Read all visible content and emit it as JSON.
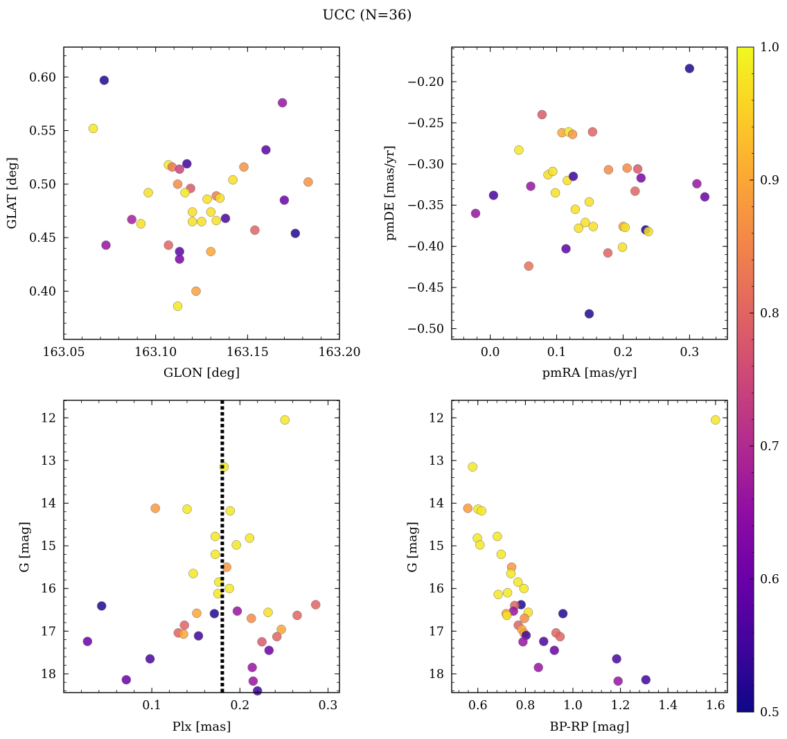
{
  "figure": {
    "title": "UCC (N=36)"
  },
  "colorbar": {
    "colormap": "plasma",
    "vmin": 0.5,
    "vmax": 1.0,
    "ticks": [
      0.5,
      0.6,
      0.7,
      0.8,
      0.9,
      1.0
    ],
    "tick_labels": [
      "0.5",
      "0.6",
      "0.7",
      "0.8",
      "0.9",
      "1.0"
    ]
  },
  "chart_data": [
    {
      "type": "scatter",
      "id": "gal",
      "title": "",
      "xlabel": "GLON [deg]",
      "ylabel": "GLAT [deg]",
      "xlim": [
        163.05,
        163.2
      ],
      "ylim": [
        0.355,
        0.628
      ],
      "y_inverted": false,
      "xticks": [
        163.05,
        163.1,
        163.15,
        163.2
      ],
      "xtick_labels": [
        "163.05",
        "163.10",
        "163.15",
        "163.20"
      ],
      "yticks": [
        0.4,
        0.45,
        0.5,
        0.55,
        0.6
      ],
      "ytick_labels": [
        "0.40",
        "0.45",
        "0.50",
        "0.55",
        "0.60"
      ],
      "points": [
        {
          "x": 163.072,
          "y": 0.597,
          "c": 0.52
        },
        {
          "x": 163.066,
          "y": 0.552,
          "c": 0.98
        },
        {
          "x": 163.169,
          "y": 0.576,
          "c": 0.66
        },
        {
          "x": 163.16,
          "y": 0.532,
          "c": 0.58
        },
        {
          "x": 163.107,
          "y": 0.518,
          "c": 0.98
        },
        {
          "x": 163.109,
          "y": 0.516,
          "c": 0.83
        },
        {
          "x": 163.113,
          "y": 0.514,
          "c": 0.74
        },
        {
          "x": 163.117,
          "y": 0.519,
          "c": 0.55
        },
        {
          "x": 163.148,
          "y": 0.516,
          "c": 0.87
        },
        {
          "x": 163.183,
          "y": 0.502,
          "c": 0.87
        },
        {
          "x": 163.112,
          "y": 0.5,
          "c": 0.86
        },
        {
          "x": 163.119,
          "y": 0.496,
          "c": 0.78
        },
        {
          "x": 163.142,
          "y": 0.504,
          "c": 0.97
        },
        {
          "x": 163.096,
          "y": 0.492,
          "c": 0.97
        },
        {
          "x": 163.116,
          "y": 0.492,
          "c": 0.98
        },
        {
          "x": 163.133,
          "y": 0.489,
          "c": 0.84
        },
        {
          "x": 163.128,
          "y": 0.486,
          "c": 0.97
        },
        {
          "x": 163.135,
          "y": 0.487,
          "c": 0.97
        },
        {
          "x": 163.17,
          "y": 0.485,
          "c": 0.6
        },
        {
          "x": 163.12,
          "y": 0.474,
          "c": 0.97
        },
        {
          "x": 163.13,
          "y": 0.474,
          "c": 0.97
        },
        {
          "x": 163.087,
          "y": 0.467,
          "c": 0.68
        },
        {
          "x": 163.092,
          "y": 0.463,
          "c": 0.97
        },
        {
          "x": 163.12,
          "y": 0.465,
          "c": 0.97
        },
        {
          "x": 163.125,
          "y": 0.465,
          "c": 0.97
        },
        {
          "x": 163.133,
          "y": 0.466,
          "c": 0.97
        },
        {
          "x": 163.138,
          "y": 0.468,
          "c": 0.56
        },
        {
          "x": 163.176,
          "y": 0.454,
          "c": 0.52
        },
        {
          "x": 163.154,
          "y": 0.457,
          "c": 0.8
        },
        {
          "x": 163.073,
          "y": 0.443,
          "c": 0.66
        },
        {
          "x": 163.107,
          "y": 0.443,
          "c": 0.8
        },
        {
          "x": 163.113,
          "y": 0.437,
          "c": 0.58
        },
        {
          "x": 163.13,
          "y": 0.437,
          "c": 0.9
        },
        {
          "x": 163.113,
          "y": 0.43,
          "c": 0.62
        },
        {
          "x": 163.122,
          "y": 0.4,
          "c": 0.89
        },
        {
          "x": 163.112,
          "y": 0.386,
          "c": 0.98
        }
      ]
    },
    {
      "type": "scatter",
      "id": "pm",
      "title": "",
      "xlabel": "pmRA [mas/yr]",
      "ylabel": "pmDE [mas/yr]",
      "xlim": [
        -0.058,
        0.357
      ],
      "ylim": [
        -0.513,
        -0.158
      ],
      "y_inverted": false,
      "xticks": [
        0.0,
        0.1,
        0.2,
        0.3
      ],
      "xtick_labels": [
        "0.0",
        "0.1",
        "0.2",
        "0.3"
      ],
      "yticks": [
        -0.5,
        -0.45,
        -0.4,
        -0.35,
        -0.3,
        -0.25,
        -0.2
      ],
      "ytick_labels": [
        "−0.50",
        "−0.45",
        "−0.40",
        "−0.35",
        "−0.30",
        "−0.25",
        "−0.20"
      ],
      "points": [
        {
          "x": 0.3,
          "y": -0.184,
          "c": 0.52
        },
        {
          "x": 0.078,
          "y": -0.24,
          "c": 0.78
        },
        {
          "x": 0.108,
          "y": -0.262,
          "c": 0.9
        },
        {
          "x": 0.118,
          "y": -0.261,
          "c": 0.98
        },
        {
          "x": 0.124,
          "y": -0.264,
          "c": 0.88
        },
        {
          "x": 0.154,
          "y": -0.261,
          "c": 0.8
        },
        {
          "x": 0.043,
          "y": -0.283,
          "c": 0.98
        },
        {
          "x": 0.178,
          "y": -0.307,
          "c": 0.86
        },
        {
          "x": 0.206,
          "y": -0.305,
          "c": 0.86
        },
        {
          "x": 0.222,
          "y": -0.306,
          "c": 0.78
        },
        {
          "x": 0.087,
          "y": -0.313,
          "c": 0.97
        },
        {
          "x": 0.094,
          "y": -0.309,
          "c": 0.97
        },
        {
          "x": 0.116,
          "y": -0.32,
          "c": 0.97
        },
        {
          "x": 0.125,
          "y": -0.315,
          "c": 0.55
        },
        {
          "x": 0.227,
          "y": -0.317,
          "c": 0.62
        },
        {
          "x": 0.311,
          "y": -0.324,
          "c": 0.66
        },
        {
          "x": 0.061,
          "y": -0.327,
          "c": 0.66
        },
        {
          "x": 0.218,
          "y": -0.333,
          "c": 0.8
        },
        {
          "x": 0.098,
          "y": -0.335,
          "c": 0.97
        },
        {
          "x": 0.005,
          "y": -0.338,
          "c": 0.56
        },
        {
          "x": 0.323,
          "y": -0.34,
          "c": 0.6
        },
        {
          "x": 0.149,
          "y": -0.346,
          "c": 0.97
        },
        {
          "x": -0.022,
          "y": -0.36,
          "c": 0.66
        },
        {
          "x": 0.128,
          "y": -0.355,
          "c": 0.97
        },
        {
          "x": 0.143,
          "y": -0.371,
          "c": 0.97
        },
        {
          "x": 0.155,
          "y": -0.376,
          "c": 0.97
        },
        {
          "x": 0.133,
          "y": -0.378,
          "c": 0.97
        },
        {
          "x": 0.2,
          "y": -0.376,
          "c": 0.9
        },
        {
          "x": 0.203,
          "y": -0.377,
          "c": 0.97
        },
        {
          "x": 0.234,
          "y": -0.38,
          "c": 0.52
        },
        {
          "x": 0.238,
          "y": -0.382,
          "c": 0.97
        },
        {
          "x": 0.199,
          "y": -0.401,
          "c": 0.97
        },
        {
          "x": 0.114,
          "y": -0.403,
          "c": 0.58
        },
        {
          "x": 0.177,
          "y": -0.408,
          "c": 0.8
        },
        {
          "x": 0.058,
          "y": -0.424,
          "c": 0.82
        },
        {
          "x": 0.149,
          "y": -0.482,
          "c": 0.52
        }
      ]
    },
    {
      "type": "scatter",
      "id": "plx",
      "title": "",
      "xlabel": "Plx [mas]",
      "ylabel": "G [mag]",
      "xlim": [
        0.0,
        0.313
      ],
      "ylim": [
        18.44,
        11.59
      ],
      "y_inverted": true,
      "xticks": [
        0.1,
        0.2,
        0.3
      ],
      "xtick_labels": [
        "0.1",
        "0.2",
        "0.3"
      ],
      "yticks": [
        12,
        13,
        14,
        15,
        16,
        17,
        18
      ],
      "ytick_labels": [
        "12",
        "13",
        "14",
        "15",
        "16",
        "17",
        "18"
      ],
      "vline": {
        "x": 0.18,
        "style": "dotted",
        "color": "#000000"
      },
      "points": [
        {
          "x": 0.251,
          "y": 12.05,
          "c": 0.98
        },
        {
          "x": 0.182,
          "y": 13.15,
          "c": 0.98
        },
        {
          "x": 0.104,
          "y": 14.12,
          "c": 0.88
        },
        {
          "x": 0.14,
          "y": 14.14,
          "c": 0.98
        },
        {
          "x": 0.189,
          "y": 14.18,
          "c": 0.98
        },
        {
          "x": 0.172,
          "y": 14.78,
          "c": 0.98
        },
        {
          "x": 0.211,
          "y": 14.82,
          "c": 0.98
        },
        {
          "x": 0.196,
          "y": 14.98,
          "c": 0.98
        },
        {
          "x": 0.172,
          "y": 15.2,
          "c": 0.98
        },
        {
          "x": 0.185,
          "y": 15.5,
          "c": 0.88
        },
        {
          "x": 0.147,
          "y": 15.65,
          "c": 0.98
        },
        {
          "x": 0.176,
          "y": 15.85,
          "c": 0.98
        },
        {
          "x": 0.188,
          "y": 16.0,
          "c": 0.98
        },
        {
          "x": 0.175,
          "y": 16.12,
          "c": 0.98
        },
        {
          "x": 0.043,
          "y": 16.41,
          "c": 0.52
        },
        {
          "x": 0.286,
          "y": 16.38,
          "c": 0.8
        },
        {
          "x": 0.197,
          "y": 16.53,
          "c": 0.66
        },
        {
          "x": 0.232,
          "y": 16.56,
          "c": 0.97
        },
        {
          "x": 0.151,
          "y": 16.58,
          "c": 0.9
        },
        {
          "x": 0.171,
          "y": 16.59,
          "c": 0.52
        },
        {
          "x": 0.265,
          "y": 16.63,
          "c": 0.8
        },
        {
          "x": 0.213,
          "y": 16.7,
          "c": 0.86
        },
        {
          "x": 0.137,
          "y": 16.86,
          "c": 0.8
        },
        {
          "x": 0.247,
          "y": 16.96,
          "c": 0.9
        },
        {
          "x": 0.13,
          "y": 17.04,
          "c": 0.8
        },
        {
          "x": 0.136,
          "y": 17.07,
          "c": 0.9
        },
        {
          "x": 0.153,
          "y": 17.11,
          "c": 0.55
        },
        {
          "x": 0.242,
          "y": 17.13,
          "c": 0.8
        },
        {
          "x": 0.027,
          "y": 17.24,
          "c": 0.6
        },
        {
          "x": 0.225,
          "y": 17.25,
          "c": 0.78
        },
        {
          "x": 0.233,
          "y": 17.45,
          "c": 0.6
        },
        {
          "x": 0.098,
          "y": 17.65,
          "c": 0.56
        },
        {
          "x": 0.214,
          "y": 17.85,
          "c": 0.66
        },
        {
          "x": 0.071,
          "y": 18.14,
          "c": 0.6
        },
        {
          "x": 0.215,
          "y": 18.17,
          "c": 0.66
        },
        {
          "x": 0.22,
          "y": 18.4,
          "c": 0.55
        }
      ]
    },
    {
      "type": "scatter",
      "id": "cmd",
      "title": "",
      "xlabel": "BP-RP [mag]",
      "ylabel": "G [mag]",
      "xlim": [
        0.49,
        1.65
      ],
      "ylim": [
        18.44,
        11.59
      ],
      "y_inverted": true,
      "xticks": [
        0.6,
        0.8,
        1.0,
        1.2,
        1.4,
        1.6
      ],
      "xtick_labels": [
        "0.6",
        "0.8",
        "1.0",
        "1.2",
        "1.4",
        "1.6"
      ],
      "yticks": [
        12,
        13,
        14,
        15,
        16,
        17,
        18
      ],
      "ytick_labels": [
        "12",
        "13",
        "14",
        "15",
        "16",
        "17",
        "18"
      ],
      "points": [
        {
          "x": 1.6,
          "y": 12.05,
          "c": 0.98
        },
        {
          "x": 0.578,
          "y": 13.15,
          "c": 0.98
        },
        {
          "x": 0.558,
          "y": 14.12,
          "c": 0.88
        },
        {
          "x": 0.601,
          "y": 14.14,
          "c": 0.98
        },
        {
          "x": 0.616,
          "y": 14.18,
          "c": 0.98
        },
        {
          "x": 0.598,
          "y": 14.82,
          "c": 0.98
        },
        {
          "x": 0.609,
          "y": 14.98,
          "c": 0.98
        },
        {
          "x": 0.682,
          "y": 14.78,
          "c": 0.98
        },
        {
          "x": 0.698,
          "y": 15.2,
          "c": 0.98
        },
        {
          "x": 0.742,
          "y": 15.5,
          "c": 0.88
        },
        {
          "x": 0.739,
          "y": 15.65,
          "c": 0.98
        },
        {
          "x": 0.769,
          "y": 15.85,
          "c": 0.98
        },
        {
          "x": 0.794,
          "y": 16.0,
          "c": 0.98
        },
        {
          "x": 0.686,
          "y": 16.14,
          "c": 0.98
        },
        {
          "x": 0.725,
          "y": 16.1,
          "c": 0.98
        },
        {
          "x": 0.782,
          "y": 16.38,
          "c": 0.52
        },
        {
          "x": 0.755,
          "y": 16.4,
          "c": 0.8
        },
        {
          "x": 0.75,
          "y": 16.53,
          "c": 0.66
        },
        {
          "x": 0.812,
          "y": 16.56,
          "c": 0.97
        },
        {
          "x": 0.719,
          "y": 16.59,
          "c": 0.9
        },
        {
          "x": 0.722,
          "y": 16.63,
          "c": 0.97
        },
        {
          "x": 0.958,
          "y": 16.59,
          "c": 0.52
        },
        {
          "x": 0.796,
          "y": 16.7,
          "c": 0.86
        },
        {
          "x": 0.77,
          "y": 16.86,
          "c": 0.8
        },
        {
          "x": 0.785,
          "y": 16.96,
          "c": 0.9
        },
        {
          "x": 0.795,
          "y": 17.05,
          "c": 0.9
        },
        {
          "x": 0.803,
          "y": 17.1,
          "c": 0.55
        },
        {
          "x": 0.929,
          "y": 17.04,
          "c": 0.8
        },
        {
          "x": 0.946,
          "y": 17.13,
          "c": 0.8
        },
        {
          "x": 0.79,
          "y": 17.25,
          "c": 0.66
        },
        {
          "x": 0.877,
          "y": 17.24,
          "c": 0.56
        },
        {
          "x": 0.922,
          "y": 17.45,
          "c": 0.6
        },
        {
          "x": 0.855,
          "y": 17.85,
          "c": 0.66
        },
        {
          "x": 1.184,
          "y": 17.65,
          "c": 0.56
        },
        {
          "x": 1.19,
          "y": 18.17,
          "c": 0.66
        },
        {
          "x": 1.307,
          "y": 18.14,
          "c": 0.55
        }
      ]
    }
  ]
}
